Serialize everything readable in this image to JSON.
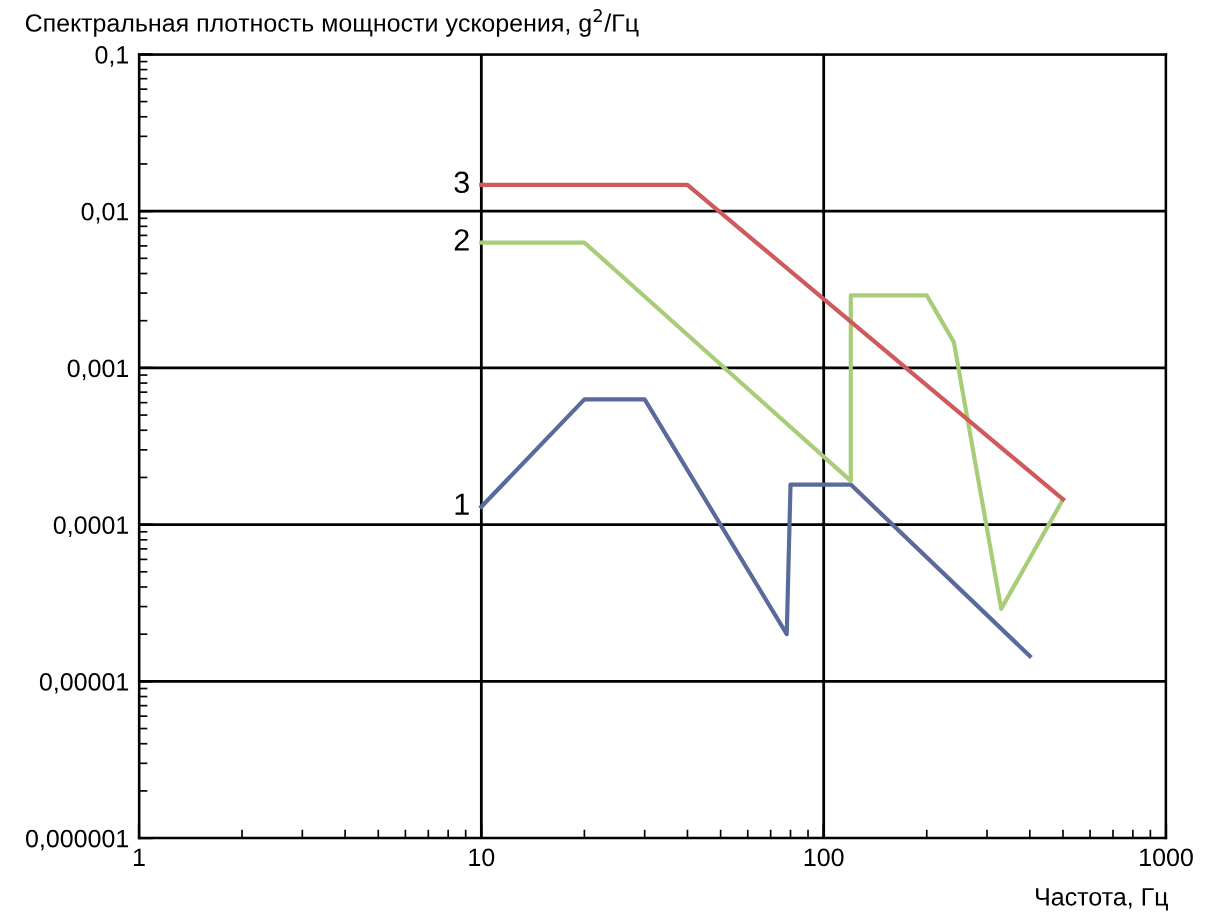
{
  "chart_data": {
    "type": "line",
    "ylabel": "Спектральная плотность мощности ускорения, g$^{2}$/Гц",
    "xlabel": "Частота, Гц",
    "log": "xy",
    "grid": true,
    "marker": "none",
    "line_style": "solid",
    "xlim": [
      1,
      1000
    ],
    "xticks": [
      1,
      10,
      100,
      1000
    ],
    "ylim": [
      1e-06,
      0.1
    ],
    "yticks": [
      {
        "value": 1e-06,
        "label": "0,000001"
      },
      {
        "value": 1e-05,
        "label": "0,00001"
      },
      {
        "value": 0.0001,
        "label": "0,0001"
      },
      {
        "value": 0.001,
        "label": "0,001"
      },
      {
        "value": 0.01,
        "label": "0,01"
      },
      {
        "value": 0.1,
        "label": "0,1"
      }
    ],
    "series": [
      {
        "name": "1",
        "color": "#5a6a9a",
        "x": [
          10,
          20,
          30,
          78,
          80,
          120,
          400
        ],
        "values": [
          0.00013,
          0.00063,
          0.00063,
          2e-05,
          0.00018,
          0.00018,
          1.45e-05
        ]
      },
      {
        "name": "2",
        "color": "#a8cc78",
        "x": [
          10,
          20,
          120,
          120,
          200,
          240,
          330,
          500
        ],
        "values": [
          0.0063,
          0.0063,
          0.00019,
          0.0029,
          0.0029,
          0.00146,
          2.9e-05,
          0.000145
        ]
      },
      {
        "name": "3",
        "color": "#d0595c",
        "x": [
          10,
          40,
          500
        ],
        "values": [
          0.0147,
          0.0147,
          0.000145
        ]
      }
    ]
  }
}
